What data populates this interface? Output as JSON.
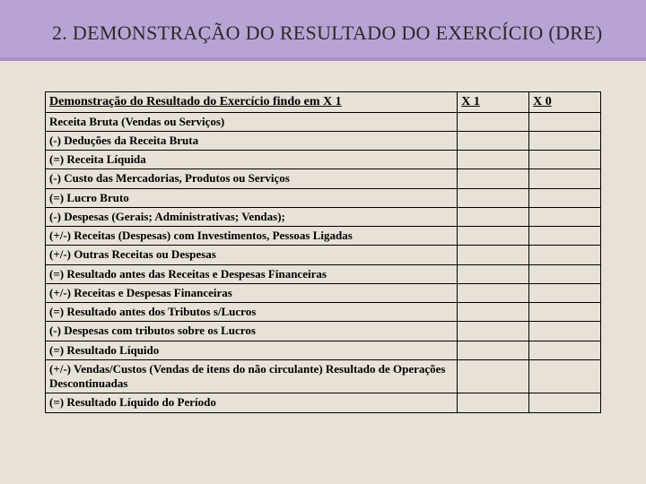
{
  "title": "2. DEMONSTRAÇÃO DO RESULTADO DO EXERCÍCIO (DRE)",
  "table": {
    "header": {
      "desc": "Demonstração do Resultado do Exercício findo em X 1",
      "col1": "X 1",
      "col2": "X 0"
    },
    "rows": [
      "Receita Bruta (Vendas ou Serviços)",
      "(-) Deduções da Receita Bruta",
      "(=) Receita Líquida",
      "(-) Custo das Mercadorias, Produtos ou Serviços",
      "(=) Lucro Bruto",
      "(-) Despesas (Gerais; Administrativas; Vendas);",
      "(+/-) Receitas (Despesas) com Investimentos, Pessoas Ligadas",
      "(+/-) Outras Receitas ou Despesas",
      "(=) Resultado antes das Receitas e Despesas Financeiras",
      "(+/-) Receitas e Despesas Financeiras",
      "(=) Resultado antes dos Tributos s/Lucros",
      "(-) Despesas com tributos sobre os Lucros",
      "(=) Resultado Líquido",
      "(+/-) Vendas/Custos (Vendas de itens do não circulante) Resultado de Operações Descontinuadas",
      "(=) Resultado Líquido do Período"
    ]
  }
}
